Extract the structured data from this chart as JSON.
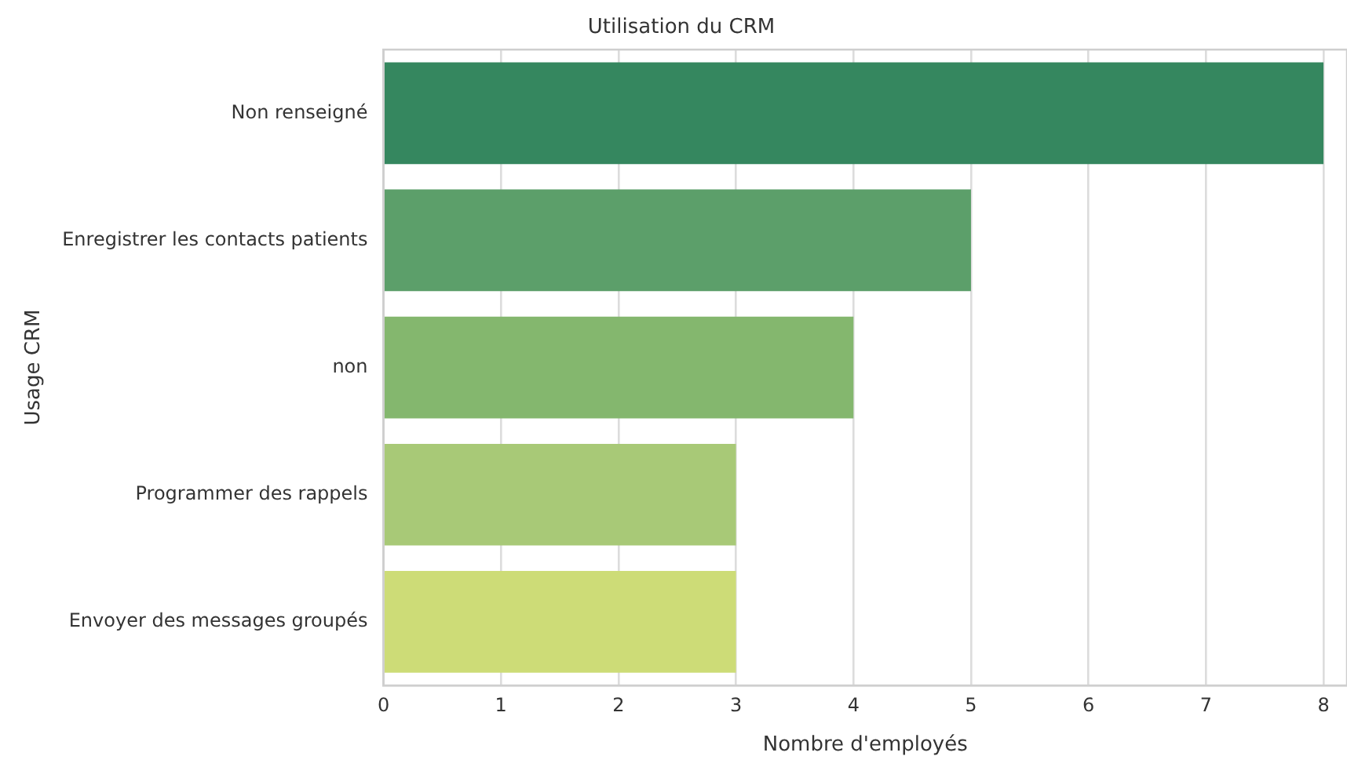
{
  "chart_data": {
    "type": "bar",
    "orientation": "horizontal",
    "title": "Utilisation du CRM",
    "xlabel": "Nombre d'employés",
    "ylabel": "Usage CRM",
    "categories": [
      "Non renseigné",
      "Enregistrer les contacts patients",
      "non",
      "Programmer des rappels",
      "Envoyer des messages groupés"
    ],
    "values": [
      8,
      5,
      4,
      3,
      3
    ],
    "colors": [
      "#35875f",
      "#5c9f6a",
      "#84b76e",
      "#a8c977",
      "#cddc77"
    ],
    "xlim": [
      0,
      8.2
    ],
    "xticks": [
      0,
      1,
      2,
      3,
      4,
      5,
      6,
      7,
      8
    ],
    "grid": "x"
  }
}
